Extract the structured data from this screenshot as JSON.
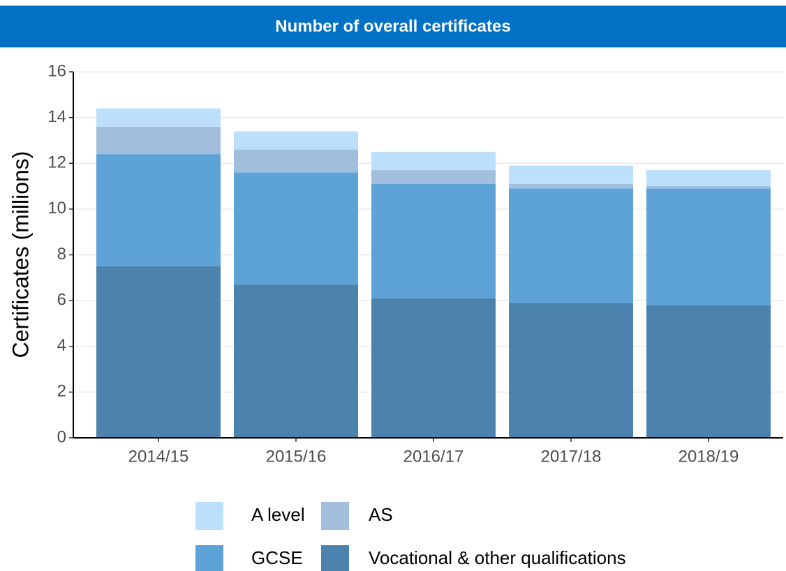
{
  "chart_data": {
    "type": "stacked_bar",
    "title": "Number of overall certificates",
    "y_label": "Certificates (millions)",
    "categories": [
      "2014/15",
      "2015/16",
      "2016/17",
      "2017/18",
      "2018/19"
    ],
    "series": [
      {
        "name": "A level",
        "color": "#bcdffb",
        "values": [
          0.8,
          0.8,
          0.8,
          0.8,
          0.7
        ]
      },
      {
        "name": "AS",
        "color": "#a1bfdd",
        "values": [
          1.2,
          1.0,
          0.6,
          0.2,
          0.1
        ]
      },
      {
        "name": "GCSE",
        "color": "#5ea3d7",
        "values": [
          4.9,
          4.9,
          5.0,
          5.0,
          5.1
        ]
      },
      {
        "name": "Vocational & other qualifications",
        "color": "#4b83ae",
        "values": [
          7.5,
          6.7,
          6.1,
          5.9,
          5.8
        ]
      }
    ],
    "ylim": [
      0,
      16
    ],
    "yticks": [
      0,
      2,
      4,
      6,
      8,
      10,
      12,
      14,
      16
    ],
    "grid": true
  }
}
